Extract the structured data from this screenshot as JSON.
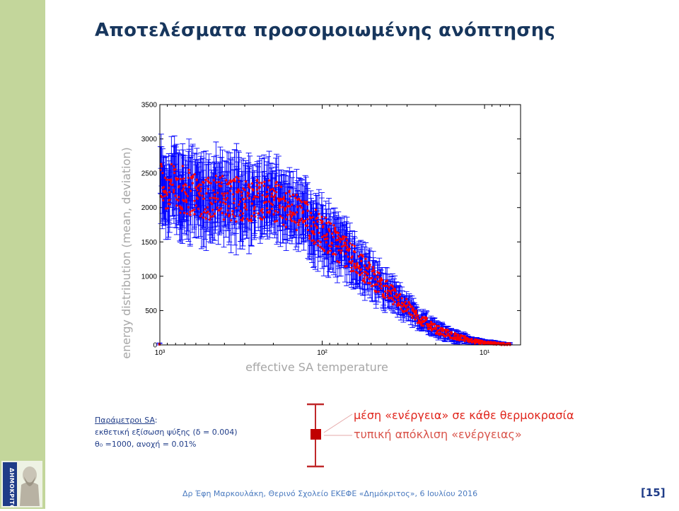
{
  "slide": {
    "title": "Αποτελέσματα προσομοιωμένης ανόπτησης",
    "footer": "Δρ Έφη Μαρκουλάκη, Θερινό Σχολείο ΕΚΕΦΕ «Δημόκριτος», 6 Ιουλίου 2016",
    "page_number": "[15]",
    "sidebar_color": "#c3d69b",
    "logo_text": "ΔΗΜΟΚΡΙΤΟΣ"
  },
  "params": {
    "heading": "Παράμετροι SA",
    "line1": "εκθετική εξίσωση ψύξης (δ = 0.004)",
    "line2": "θ₀ =1000, ανοχή = 0.01%"
  },
  "legend": {
    "mean": "μέση «ενέργεια» σε κάθε θερμοκρασία",
    "deviation": "τυπική απόκλιση «ενέργειας»",
    "mean_color": "#e0251c",
    "deviation_color": "#c0282a"
  },
  "chart_data": {
    "type": "scatter",
    "title": "",
    "xlabel": "effective SA temperature",
    "ylabel": "energy distribution (mean, deviation)",
    "x_scale": "log",
    "x_reversed": true,
    "xlim": [
      1000,
      6
    ],
    "ylim": [
      0,
      3500
    ],
    "x_ticks": [
      1000,
      100,
      10
    ],
    "x_tick_labels": [
      "10³",
      "10²",
      "10¹"
    ],
    "y_ticks": [
      0,
      500,
      1000,
      1500,
      2000,
      2500,
      3000,
      3500
    ],
    "grid": false,
    "series": [
      {
        "name": "mean",
        "color": "#ff0000",
        "points": [
          [
            1000,
            2400
          ],
          [
            900,
            2250
          ],
          [
            800,
            2300
          ],
          [
            700,
            2250
          ],
          [
            600,
            2200
          ],
          [
            500,
            2150
          ],
          [
            400,
            2150
          ],
          [
            300,
            2100
          ],
          [
            250,
            2150
          ],
          [
            200,
            2100
          ],
          [
            150,
            1950
          ],
          [
            120,
            1800
          ],
          [
            100,
            1650
          ],
          [
            80,
            1450
          ],
          [
            60,
            1200
          ],
          [
            50,
            1000
          ],
          [
            40,
            800
          ],
          [
            30,
            550
          ],
          [
            25,
            380
          ],
          [
            20,
            230
          ],
          [
            15,
            120
          ],
          [
            12,
            60
          ],
          [
            10,
            30
          ],
          [
            8,
            15
          ],
          [
            7,
            10
          ]
        ]
      },
      {
        "name": "deviation",
        "color": "#0000ff",
        "half_width": [
          420,
          450,
          450,
          440,
          430,
          420,
          420,
          410,
          400,
          380,
          360,
          350,
          330,
          300,
          260,
          220,
          180,
          140,
          110,
          80,
          60,
          40,
          30,
          20,
          15
        ]
      }
    ]
  }
}
